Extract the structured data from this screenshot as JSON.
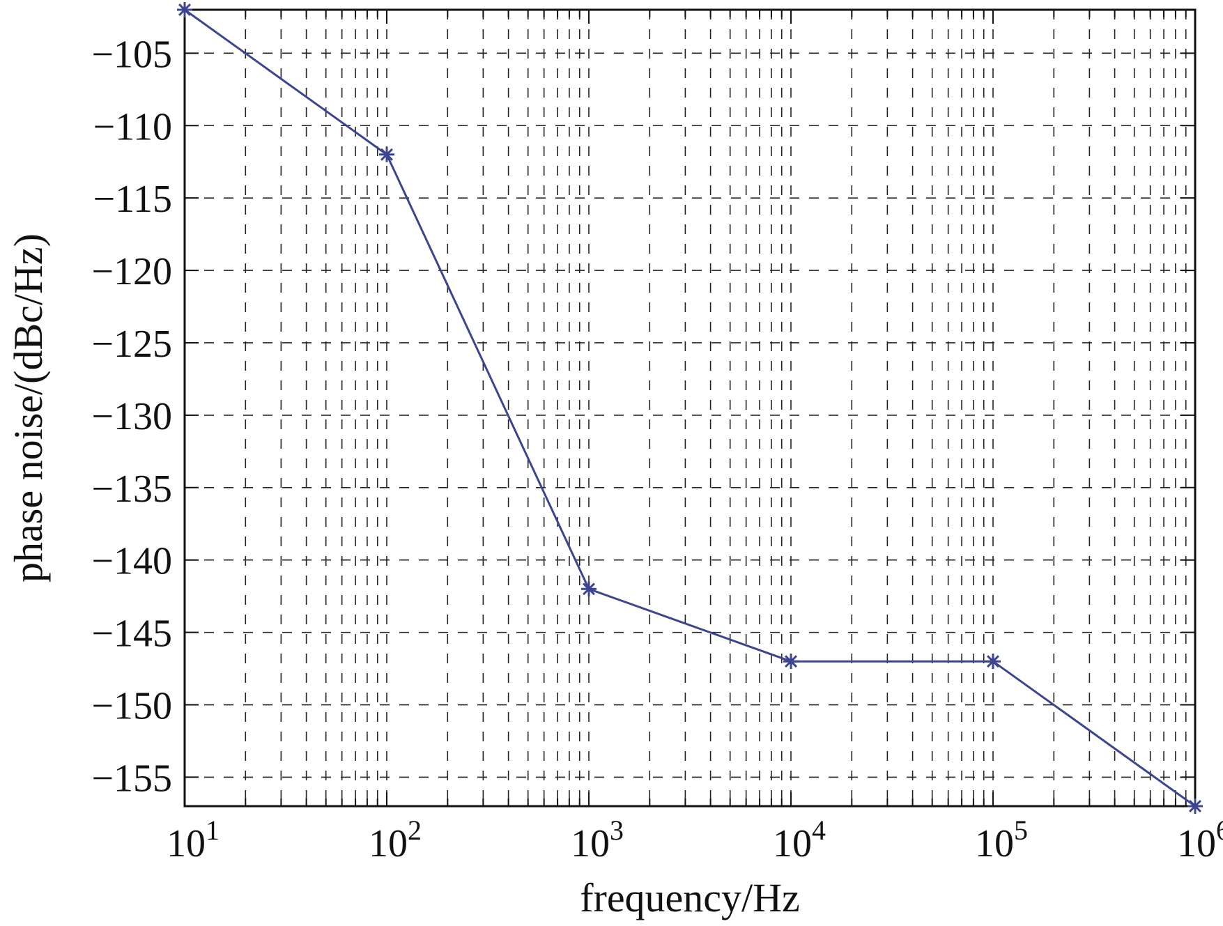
{
  "chart_data": {
    "type": "line",
    "title": "",
    "xlabel": "frequency/Hz",
    "ylabel": "phase noise/(dBc/Hz)",
    "xscale": "log",
    "xlim": [
      10,
      1000000
    ],
    "ylim": [
      -157,
      -102
    ],
    "grid": true,
    "grid_style": "dashed",
    "legend": "none",
    "x_ticks": [
      {
        "value": 10,
        "base": "10",
        "exp": "1"
      },
      {
        "value": 100,
        "base": "10",
        "exp": "2"
      },
      {
        "value": 1000,
        "base": "10",
        "exp": "3"
      },
      {
        "value": 10000,
        "base": "10",
        "exp": "4"
      },
      {
        "value": 100000,
        "base": "10",
        "exp": "5"
      },
      {
        "value": 1000000,
        "base": "10",
        "exp": "6"
      }
    ],
    "y_ticks": [
      {
        "value": -105,
        "label": "−105"
      },
      {
        "value": -110,
        "label": "−110"
      },
      {
        "value": -115,
        "label": "−115"
      },
      {
        "value": -120,
        "label": "−120"
      },
      {
        "value": -125,
        "label": "−125"
      },
      {
        "value": -130,
        "label": "−130"
      },
      {
        "value": -135,
        "label": "−135"
      },
      {
        "value": -140,
        "label": "−140"
      },
      {
        "value": -145,
        "label": "−145"
      },
      {
        "value": -150,
        "label": "−150"
      },
      {
        "value": -155,
        "label": "−155"
      }
    ],
    "series": [
      {
        "color": "#3b4590",
        "marker": "asterisk",
        "x": [
          10,
          100,
          1000,
          10000,
          100000,
          1000000
        ],
        "y": [
          -102,
          -112,
          -142,
          -147,
          -147,
          -157
        ]
      }
    ]
  }
}
